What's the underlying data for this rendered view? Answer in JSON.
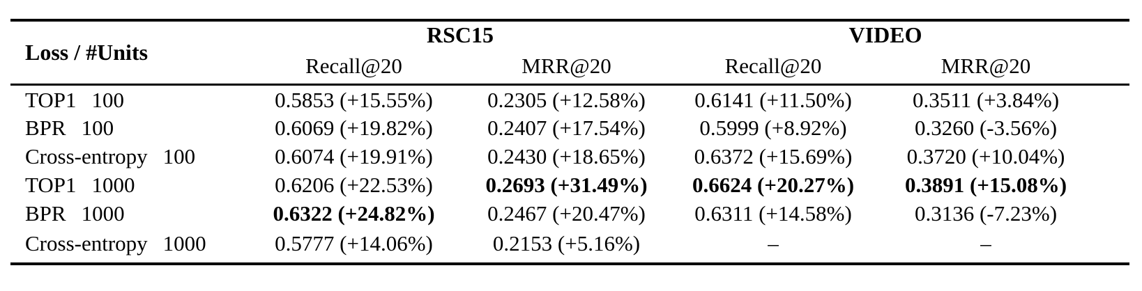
{
  "table": {
    "corner_label": "Loss / #Units",
    "group_headers": [
      {
        "label": "RSC15"
      },
      {
        "label": "VIDEO"
      }
    ],
    "metric_headers": [
      "Recall@20",
      "MRR@20",
      "Recall@20",
      "MRR@20"
    ],
    "rows": [
      {
        "loss": "TOP1",
        "units": "100",
        "cells": [
          {
            "text": "0.5853 (+15.55%)",
            "bold": false
          },
          {
            "text": "0.2305 (+12.58%)",
            "bold": false
          },
          {
            "text": "0.6141 (+11.50%)",
            "bold": false
          },
          {
            "text": "0.3511 (+3.84%)",
            "bold": false
          }
        ]
      },
      {
        "loss": "BPR",
        "units": "100",
        "cells": [
          {
            "text": "0.6069 (+19.82%)",
            "bold": false
          },
          {
            "text": "0.2407 (+17.54%)",
            "bold": false
          },
          {
            "text": "0.5999 (+8.92%)",
            "bold": false
          },
          {
            "text": "0.3260 (-3.56%)",
            "bold": false
          }
        ]
      },
      {
        "loss": "Cross-entropy",
        "units": "100",
        "cells": [
          {
            "text": "0.6074 (+19.91%)",
            "bold": false
          },
          {
            "text": "0.2430 (+18.65%)",
            "bold": false
          },
          {
            "text": "0.6372 (+15.69%)",
            "bold": false
          },
          {
            "text": "0.3720 (+10.04%)",
            "bold": false
          }
        ]
      },
      {
        "loss": "TOP1",
        "units": "1000",
        "cells": [
          {
            "text": "0.6206 (+22.53%)",
            "bold": false
          },
          {
            "text": "0.2693 (+31.49%)",
            "bold": true
          },
          {
            "text": "0.6624 (+20.27%)",
            "bold": true
          },
          {
            "text": "0.3891 (+15.08%)",
            "bold": true
          }
        ]
      },
      {
        "loss": "BPR",
        "units": "1000",
        "cells": [
          {
            "text": "0.6322 (+24.82%)",
            "bold": true
          },
          {
            "text": "0.2467 (+20.47%)",
            "bold": false
          },
          {
            "text": "0.6311 (+14.58%)",
            "bold": false
          },
          {
            "text": "0.3136 (-7.23%)",
            "bold": false
          }
        ]
      },
      {
        "loss": "Cross-entropy",
        "units": "1000",
        "cells": [
          {
            "text": "0.5777 (+14.06%)",
            "bold": false
          },
          {
            "text": "0.2153 (+5.16%)",
            "bold": false
          },
          {
            "text": "–",
            "bold": false
          },
          {
            "text": "–",
            "bold": false
          }
        ]
      }
    ],
    "colors": {
      "text": "#000000",
      "background": "#ffffff",
      "rule": "#000000"
    }
  }
}
